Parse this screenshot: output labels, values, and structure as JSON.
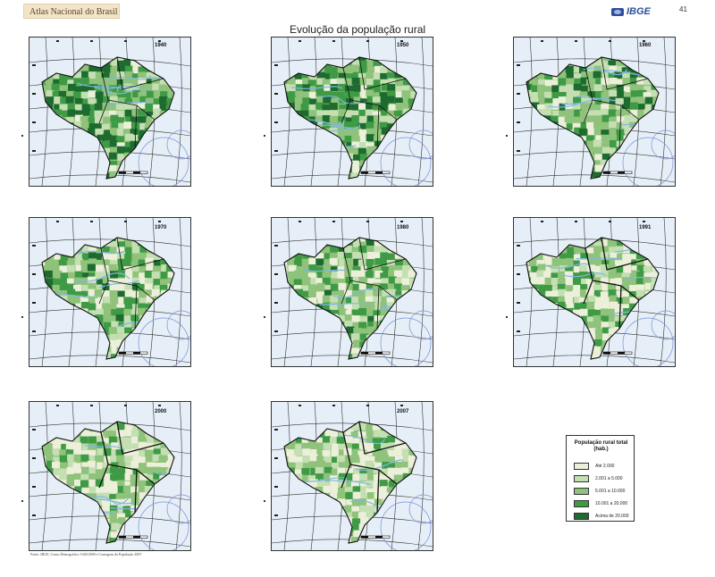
{
  "header": {
    "atlas_title": "Atlas Nacional do Brasil",
    "publisher_logo": "IBGE",
    "page_number": "41"
  },
  "title": "Evolução da população rural",
  "maps": [
    {
      "year": "1940"
    },
    {
      "year": "1950"
    },
    {
      "year": "1960"
    },
    {
      "year": "1970"
    },
    {
      "year": "1980"
    },
    {
      "year": "1991"
    },
    {
      "year": "2000"
    },
    {
      "year": "2007"
    }
  ],
  "legend": {
    "title": "População rural total (hab.)",
    "items": [
      {
        "label": "Até 2.000",
        "color": "#ecefd9"
      },
      {
        "label": "2.001 a 5.000",
        "color": "#c4dfb2"
      },
      {
        "label": "5.001 a 10.000",
        "color": "#8fc27a"
      },
      {
        "label": "10.001 a 20.000",
        "color": "#3f9a45"
      },
      {
        "label": "Acima de 20.000",
        "color": "#1d6b2f"
      }
    ]
  },
  "source": "Fonte: IBGE, Censo Demográfico 1940/2000 e Contagem da População 2007."
}
